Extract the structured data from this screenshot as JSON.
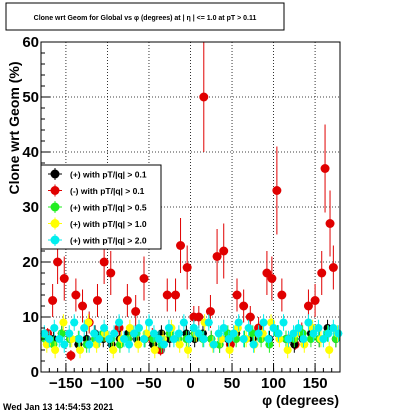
{
  "chart_data": {
    "type": "scatter",
    "title": "Clone wrt Geom for Global vs φ (degrees) at | η | <= 1.0 at pT > 0.11",
    "xlabel": "φ (degrees)",
    "ylabel": "Clone wrt Geom (%)",
    "xlim": [
      -180,
      180
    ],
    "ylim": [
      0,
      60
    ],
    "xticks": [
      -150,
      -100,
      -50,
      0,
      50,
      100,
      150
    ],
    "yticks": [
      0,
      10,
      20,
      30,
      40,
      50,
      60
    ],
    "grid": true,
    "legend_position": "left-middle",
    "footer_text": "Wed Jan 13 14:54:53 2021",
    "series": [
      {
        "name": "(+) with pT/|q| > 0.1",
        "color": "#000000",
        "x": [
          -174,
          -165,
          -155,
          -145,
          -135,
          -125,
          -115,
          -105,
          -95,
          -85,
          -75,
          -65,
          -55,
          -45,
          -35,
          -25,
          -15,
          -5,
          5,
          15,
          25,
          35,
          45,
          55,
          65,
          75,
          85,
          95,
          105,
          115,
          125,
          135,
          145,
          155,
          165,
          175
        ],
        "y": [
          6,
          6,
          7,
          6,
          5,
          6,
          7,
          6,
          5,
          6,
          7,
          6,
          6,
          5,
          7,
          6,
          6,
          7,
          6,
          7,
          6,
          5,
          6,
          7,
          6,
          6,
          7,
          6,
          7,
          6,
          5,
          6,
          7,
          6,
          8,
          6
        ]
      },
      {
        "name": "(-) with pT/|q| > 0.1",
        "color": "#e00000",
        "x": [
          -172,
          -166,
          -160,
          -152,
          -144,
          -138,
          -130,
          -122,
          -112,
          -104,
          -96,
          -86,
          -76,
          -66,
          -56,
          -46,
          -36,
          -28,
          -18,
          -12,
          -4,
          4,
          10,
          16,
          24,
          32,
          40,
          48,
          56,
          64,
          72,
          82,
          92,
          98,
          104,
          110,
          118,
          126,
          134,
          142,
          150,
          158,
          162,
          168,
          172
        ],
        "y": [
          7,
          13,
          20,
          17,
          3,
          14,
          12,
          9,
          13,
          20,
          18,
          8,
          13,
          11,
          17,
          6,
          4,
          14,
          14,
          23,
          19,
          10,
          10,
          50,
          11,
          21,
          22,
          5,
          14,
          12,
          10,
          8,
          18,
          17,
          33,
          14,
          6,
          5,
          7,
          12,
          13,
          18,
          37,
          27,
          19
        ],
        "error": [
          1,
          3,
          4,
          4,
          1,
          3,
          3,
          2,
          3,
          4,
          4,
          2,
          3,
          3,
          4,
          2,
          1,
          3,
          3,
          5,
          4,
          2,
          2,
          10,
          3,
          5,
          5,
          1,
          3,
          3,
          2,
          2,
          4,
          4,
          8,
          3,
          1,
          1,
          2,
          3,
          3,
          4,
          8,
          6,
          4
        ]
      },
      {
        "name": "(+) with pT/|q| > 0.5",
        "color": "#22ee22",
        "x": [
          -175,
          -165,
          -155,
          -145,
          -135,
          -125,
          -115,
          -105,
          -95,
          -85,
          -75,
          -65,
          -55,
          -45,
          -35,
          -25,
          -15,
          -5,
          5,
          15,
          25,
          35,
          45,
          55,
          65,
          75,
          85,
          95,
          105,
          115,
          125,
          135,
          145,
          155,
          165,
          175
        ],
        "y": [
          6,
          5,
          7,
          6,
          6,
          5,
          6,
          7,
          6,
          5,
          6,
          7,
          6,
          6,
          5,
          7,
          6,
          6,
          7,
          6,
          6,
          5,
          7,
          6,
          6,
          7,
          6,
          5,
          7,
          6,
          6,
          7,
          6,
          6,
          7,
          6
        ]
      },
      {
        "name": "(+) with pT/|q| > 1.0",
        "color": "#ffff00",
        "x": [
          -173,
          -163,
          -153,
          -143,
          -133,
          -123,
          -113,
          -103,
          -93,
          -83,
          -73,
          -63,
          -53,
          -43,
          -33,
          -23,
          -13,
          -3,
          7,
          17,
          27,
          37,
          47,
          57,
          67,
          77,
          87,
          97,
          107,
          117,
          127,
          137,
          147,
          157,
          167,
          177
        ],
        "y": [
          5,
          4,
          9,
          6,
          4,
          9,
          5,
          7,
          4,
          6,
          8,
          5,
          7,
          4,
          6,
          8,
          5,
          4,
          7,
          9,
          5,
          6,
          4,
          8,
          6,
          5,
          7,
          9,
          6,
          4,
          7,
          5,
          8,
          6,
          4,
          7
        ]
      },
      {
        "name": "(+) with pT/|q| > 2.0",
        "color": "#00eeee",
        "x": [
          -176,
          -170,
          -164,
          -158,
          -152,
          -146,
          -140,
          -134,
          -128,
          -122,
          -116,
          -110,
          -104,
          -98,
          -92,
          -86,
          -80,
          -74,
          -68,
          -62,
          -56,
          -50,
          -44,
          -38,
          -32,
          -26,
          -20,
          -14,
          -8,
          -2,
          4,
          10,
          16,
          22,
          28,
          34,
          40,
          46,
          52,
          58,
          64,
          70,
          76,
          82,
          88,
          94,
          100,
          106,
          112,
          118,
          124,
          130,
          136,
          142,
          148,
          154,
          160,
          166,
          172,
          178
        ],
        "y": [
          7,
          6,
          8,
          6,
          5,
          7,
          9,
          6,
          8,
          5,
          7,
          6,
          8,
          6,
          7,
          9,
          6,
          5,
          7,
          8,
          6,
          9,
          7,
          6,
          5,
          8,
          6,
          7,
          9,
          6,
          8,
          7,
          6,
          9,
          5,
          7,
          8,
          6,
          7,
          9,
          6,
          8,
          5,
          7,
          9,
          6,
          8,
          7,
          9,
          6,
          7,
          8,
          6,
          9,
          7,
          8,
          6,
          7,
          8,
          7
        ]
      }
    ]
  }
}
